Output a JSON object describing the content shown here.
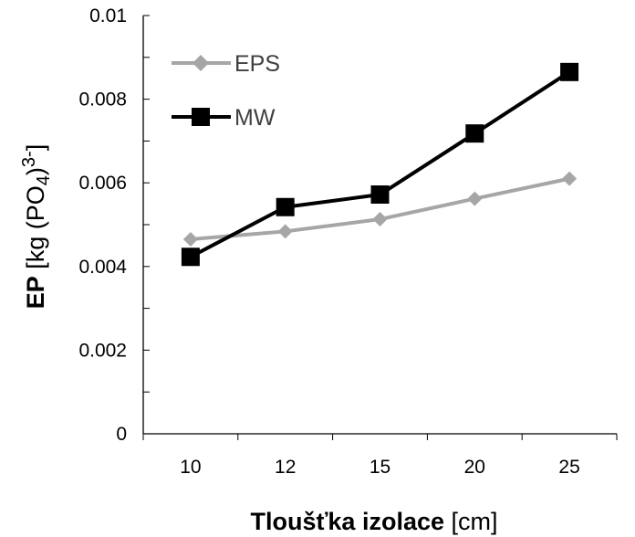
{
  "chart_data": {
    "type": "line",
    "categories": [
      "10",
      "12",
      "15",
      "20",
      "25"
    ],
    "series": [
      {
        "name": "EPS",
        "values": [
          0.00465,
          0.00484,
          0.00513,
          0.00562,
          0.0061
        ],
        "color": "#a6a6a6",
        "marker": "diamond"
      },
      {
        "name": "MW",
        "values": [
          0.00423,
          0.00542,
          0.00572,
          0.00718,
          0.00865
        ],
        "color": "#000000",
        "marker": "square"
      }
    ],
    "ylim": [
      0,
      0.01
    ],
    "yticks": [
      "0",
      "0.002",
      "0.004",
      "0.006",
      "0.008",
      "0.01"
    ],
    "xlabel": {
      "bold": "Tloušťka izolace",
      "rest": " [cm]"
    },
    "ylabel": {
      "bold": "EP",
      "rest": " [kg (PO",
      "sub": "4",
      "close": ")",
      "sup": "3-",
      "end": "]"
    },
    "legend_position": "top-left",
    "grid": false
  }
}
